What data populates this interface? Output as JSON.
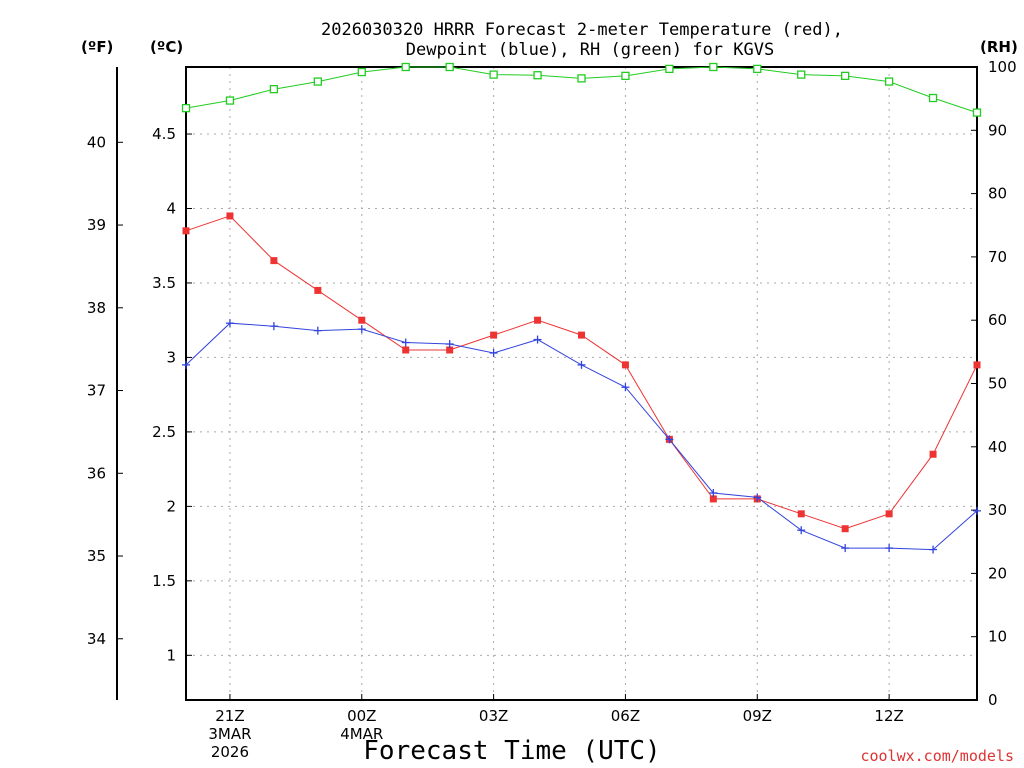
{
  "chart_data": {
    "type": "line",
    "title_line1": "2026030320 HRRR Forecast 2-meter Temperature (red),",
    "title_line2": "Dewpoint (blue), RH (green) for KGVS",
    "xlabel": "Forecast Time (UTC)",
    "credit": "coolwx.com/models",
    "unit_left_f": "(ºF)",
    "unit_left_c": "(ºC)",
    "unit_right": "(RH)",
    "x": [
      20,
      21,
      22,
      23,
      24,
      25,
      26,
      27,
      28,
      29,
      30,
      31,
      32,
      33,
      34,
      35,
      36,
      37,
      38
    ],
    "xlim": [
      20,
      38
    ],
    "x_ticks": [
      {
        "x": 21,
        "lines": [
          "21Z",
          "3MAR",
          "2026"
        ]
      },
      {
        "x": 24,
        "lines": [
          "00Z",
          "4MAR"
        ]
      },
      {
        "x": 27,
        "lines": [
          "03Z"
        ]
      },
      {
        "x": 30,
        "lines": [
          "06Z"
        ]
      },
      {
        "x": 33,
        "lines": [
          "09Z"
        ]
      },
      {
        "x": 36,
        "lines": [
          "12Z"
        ]
      }
    ],
    "celsius_axis": {
      "ylim": [
        0.7,
        4.95
      ],
      "ticks": [
        "1",
        "1.5",
        "2",
        "2.5",
        "3",
        "3.5",
        "4",
        "4.5"
      ]
    },
    "fahrenheit_axis": {
      "ticks": [
        "34",
        "35",
        "36",
        "37",
        "38",
        "39",
        "40"
      ]
    },
    "rh_axis": {
      "ylim": [
        0,
        100
      ],
      "ticks": [
        "0",
        "10",
        "20",
        "30",
        "40",
        "50",
        "60",
        "70",
        "80",
        "90",
        "100"
      ]
    },
    "series": [
      {
        "name": "Temperature",
        "unit": "C",
        "color": "#ee3333",
        "marker": "square-filled",
        "values": [
          3.85,
          3.95,
          3.65,
          3.45,
          3.25,
          3.05,
          3.05,
          3.15,
          3.25,
          3.15,
          2.95,
          2.45,
          2.05,
          2.05,
          1.95,
          1.85,
          1.95,
          2.35,
          2.95
        ]
      },
      {
        "name": "Dewpoint",
        "unit": "C",
        "color": "#3344dd",
        "marker": "plus",
        "values": [
          2.95,
          3.23,
          3.21,
          3.18,
          3.19,
          3.1,
          3.09,
          3.03,
          3.12,
          2.95,
          2.8,
          2.45,
          2.09,
          2.06,
          1.84,
          1.72,
          1.72,
          1.71,
          1.97
        ]
      },
      {
        "name": "RH",
        "unit": "%",
        "color": "#22cc22",
        "marker": "square-open",
        "values": [
          93.5,
          94.7,
          96.5,
          97.7,
          99.2,
          100,
          100,
          98.8,
          98.7,
          98.2,
          98.6,
          99.7,
          100,
          99.7,
          98.8,
          98.6,
          97.7,
          95.1,
          92.8
        ]
      }
    ]
  }
}
